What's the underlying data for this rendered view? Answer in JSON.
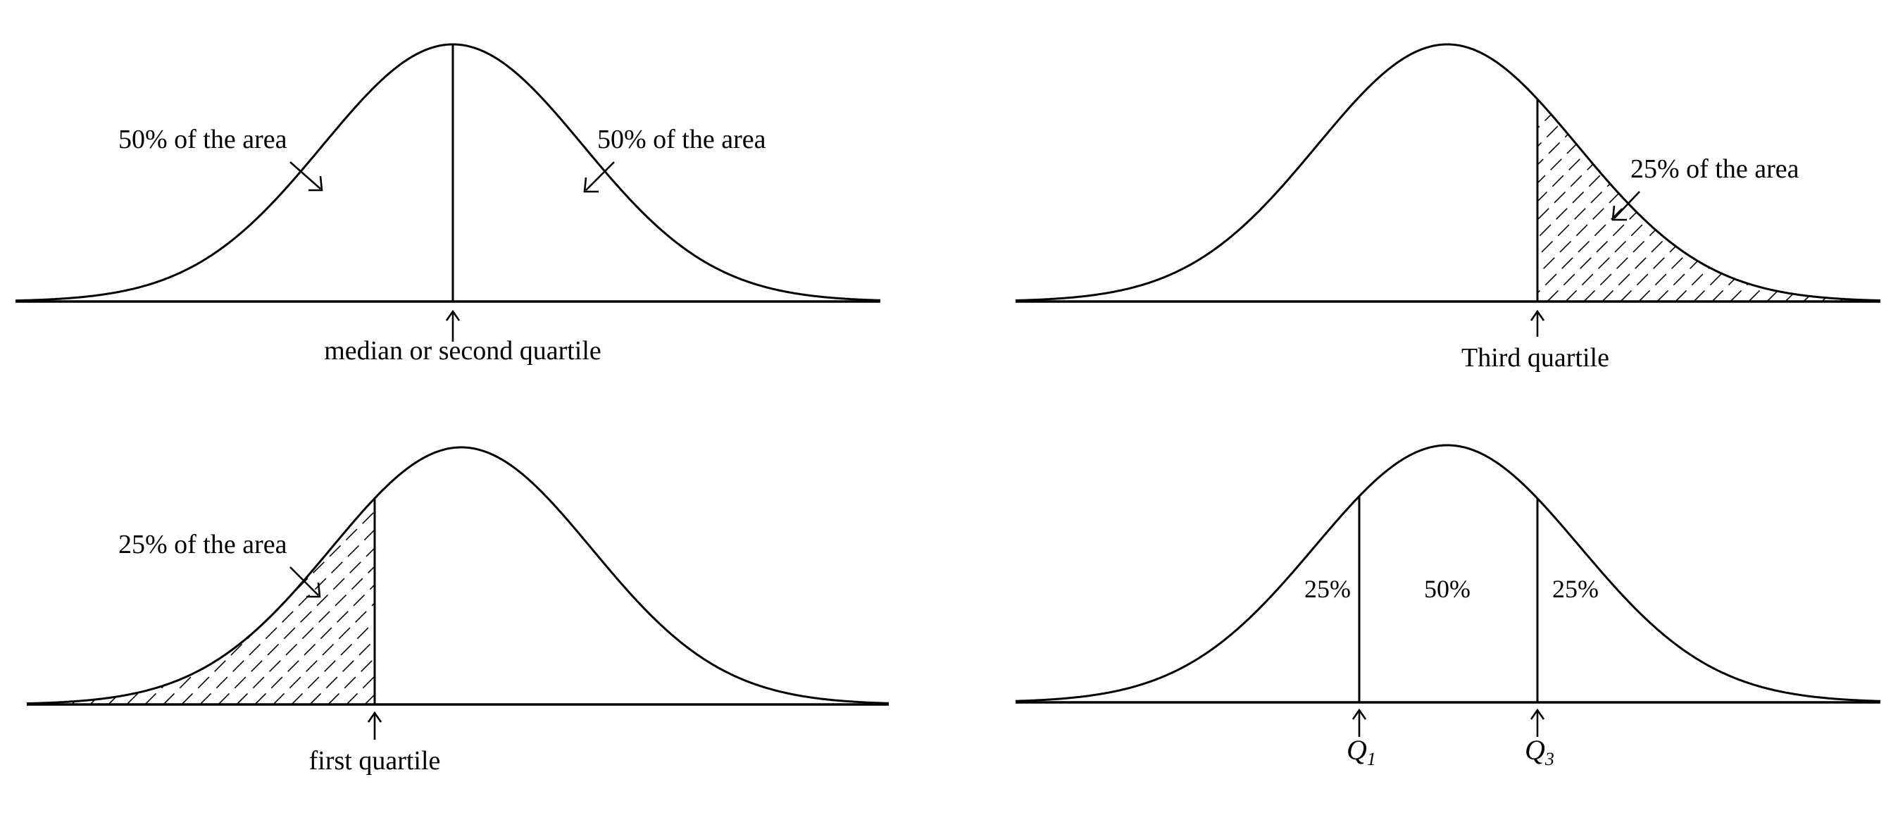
{
  "panels": [
    {
      "id": "median",
      "labels": {
        "left_area": "50% of the area",
        "right_area": "50% of the area",
        "marker": "median or second quartile"
      }
    },
    {
      "id": "third-quartile",
      "labels": {
        "shaded_area": "25% of the area",
        "marker": "Third quartile"
      }
    },
    {
      "id": "first-quartile",
      "labels": {
        "shaded_area": "25% of the area",
        "marker": "first quartile"
      }
    },
    {
      "id": "interquartile",
      "labels": {
        "left_pct": "25%",
        "middle_pct": "50%",
        "right_pct": "25%",
        "q1": "Q",
        "q1_sub": "1",
        "q3": "Q",
        "q3_sub": "3"
      }
    }
  ]
}
